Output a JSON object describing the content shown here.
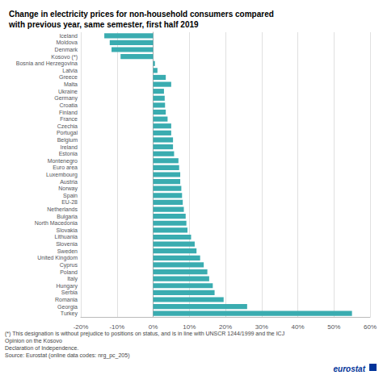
{
  "chart_data": {
    "type": "bar",
    "orientation": "horizontal",
    "title": "Change in electricity prices for non-household consumers compared\nwith previous year, same semester, first half 2019",
    "categories": [
      "Iceland",
      "Moldova",
      "Denmark",
      "Kosovo (*)",
      "Bosnia and Herzegovina",
      "Latvia",
      "Greece",
      "Malta",
      "Ukraine",
      "Germany",
      "Croatia",
      "Finland",
      "France",
      "Czechia",
      "Portugal",
      "Belgium",
      "Ireland",
      "Estonia",
      "Montenegro",
      "Euro area",
      "Luxembourg",
      "Austria",
      "Norway",
      "Spain",
      "EU-28",
      "Netherlands",
      "Bulgaria",
      "North Macedonia",
      "Slovakia",
      "Lithuania",
      "Slovenia",
      "Sweden",
      "United Kingdom",
      "Cyprus",
      "Poland",
      "Italy",
      "Hungary",
      "Serbia",
      "Romania",
      "Georgia",
      "Turkey"
    ],
    "values": [
      -0.135,
      -0.12,
      -0.115,
      -0.09,
      0.005,
      0.012,
      0.035,
      0.05,
      0.03,
      0.032,
      0.033,
      0.035,
      0.04,
      0.05,
      0.05,
      0.055,
      0.055,
      0.058,
      0.07,
      0.072,
      0.075,
      0.075,
      0.078,
      0.08,
      0.082,
      0.085,
      0.09,
      0.092,
      0.095,
      0.105,
      0.115,
      0.12,
      0.13,
      0.14,
      0.15,
      0.155,
      0.165,
      0.17,
      0.195,
      0.26,
      0.55
    ],
    "color": "#3AACB0",
    "xlim": [
      -0.2,
      0.6
    ],
    "xticks": [
      {
        "value": -0.2,
        "label": "-20%"
      },
      {
        "value": -0.1,
        "label": "-10%"
      },
      {
        "value": 0,
        "label": "0%"
      },
      {
        "value": 0.1,
        "label": "10%"
      },
      {
        "value": 0.2,
        "label": "20%"
      },
      {
        "value": 0.3,
        "label": "30%"
      },
      {
        "value": 0.4,
        "label": "40%"
      },
      {
        "value": 0.5,
        "label": "50%"
      },
      {
        "value": 0.6,
        "label": "60%"
      }
    ],
    "grid": true,
    "annotations": [
      "(*) This designation is without prejudice to positions on status, and is in line with UNSCR 1244/1999 and the ICJ",
      "Opinion on the Kosovo",
      "Declaration of Independence.",
      "Source: Eurostat (online data codes: nrg_pc_205)",
      "eurostat"
    ]
  }
}
